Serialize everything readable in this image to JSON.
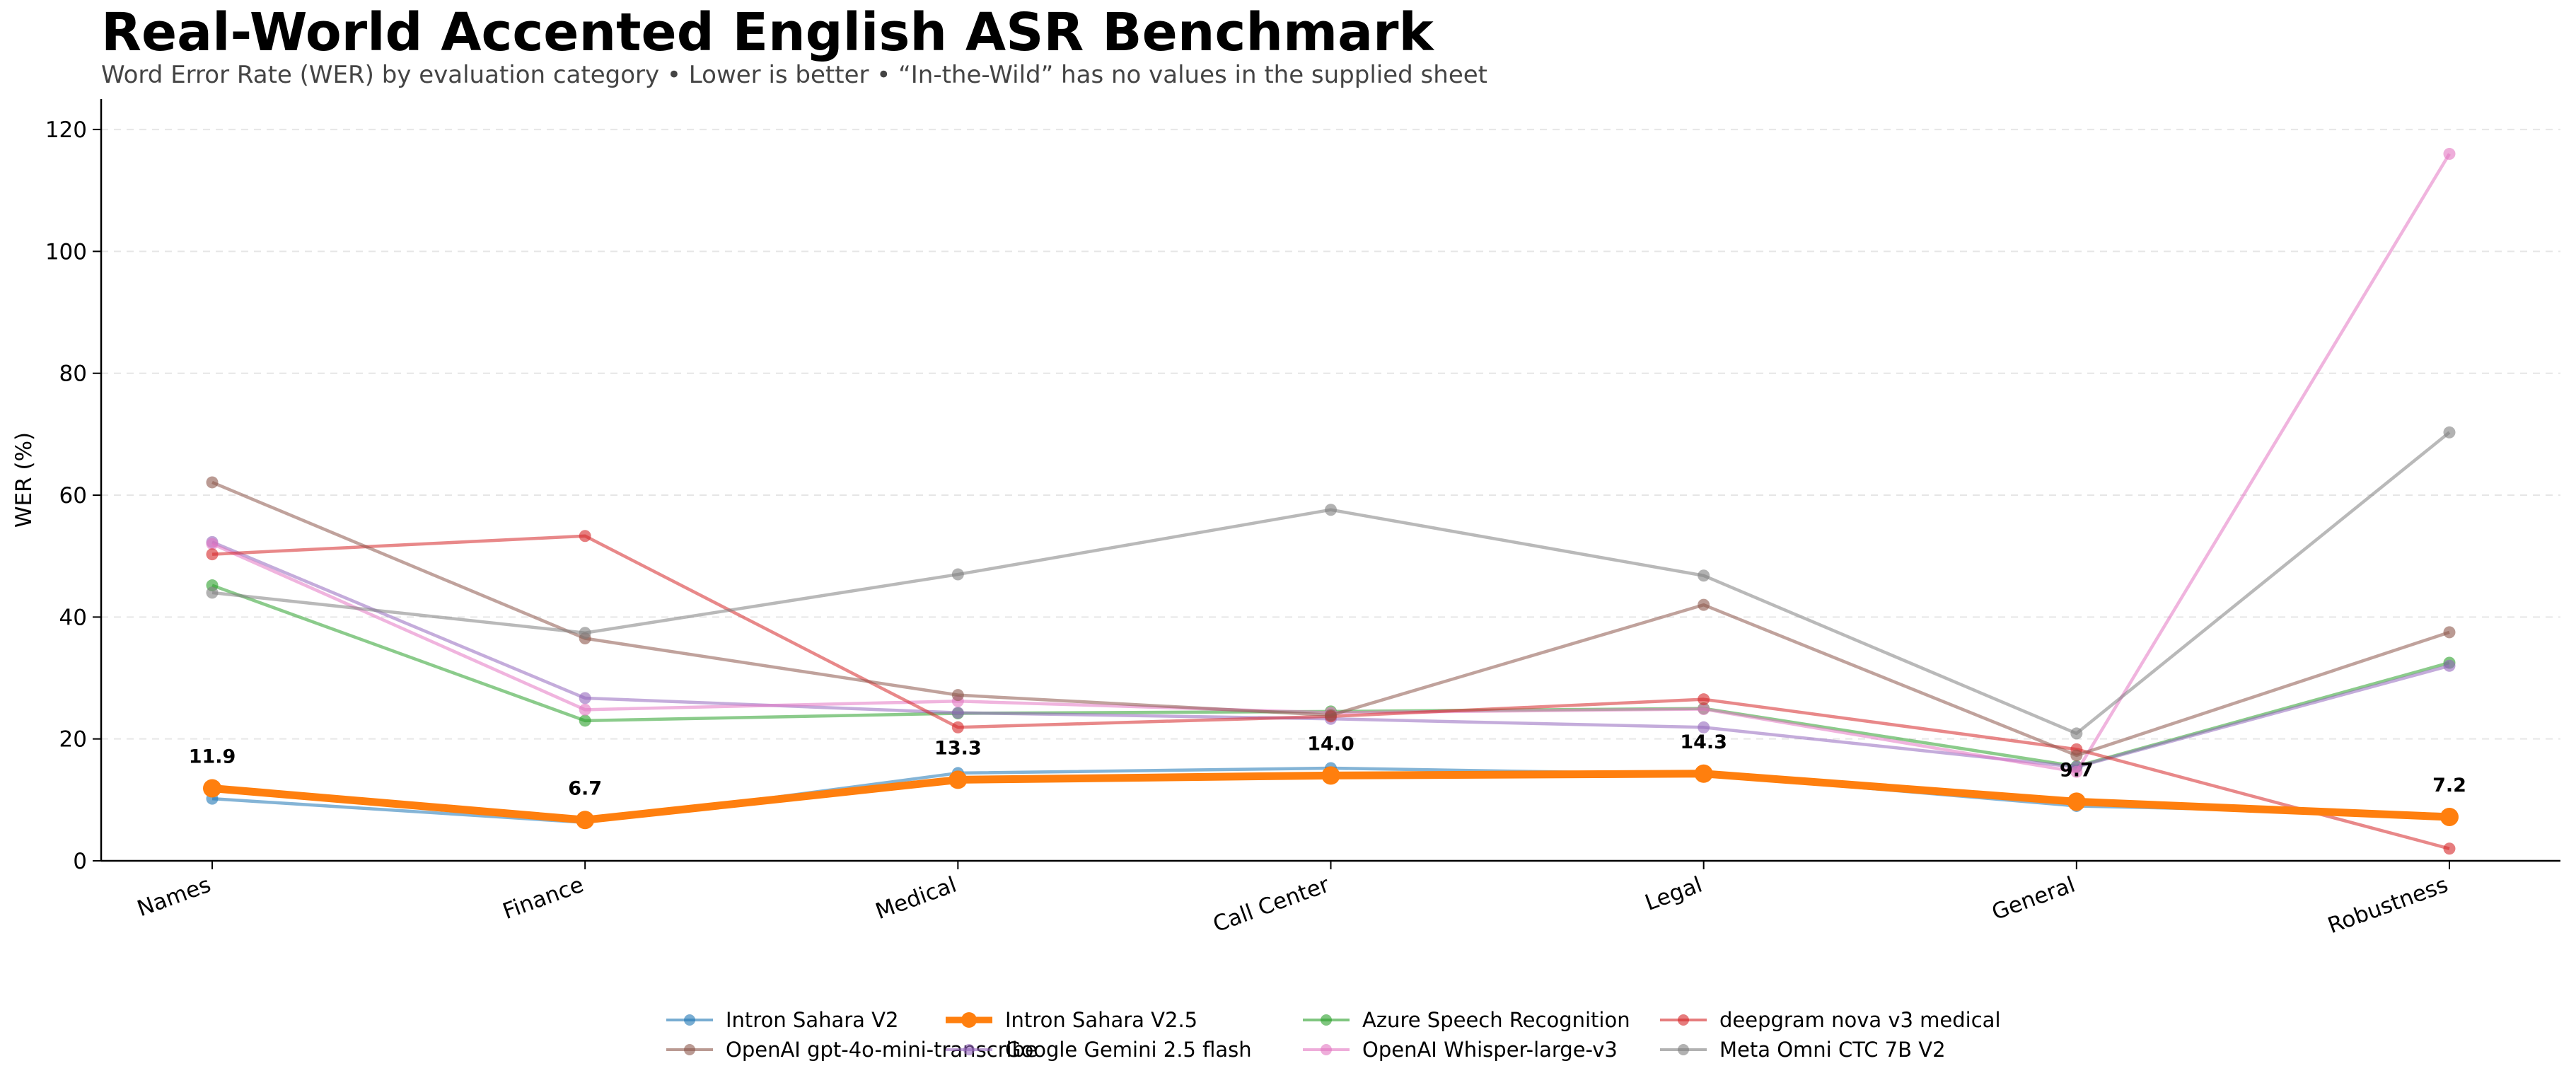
{
  "chart_data": {
    "type": "line",
    "title": "Real-World Accented English ASR Benchmark",
    "subtitle": "Word Error Rate (WER) by evaluation category • Lower is better • “In-the-Wild” has no values in the supplied sheet",
    "xlabel": "",
    "ylabel": "WER (%)",
    "ylim": [
      0,
      125
    ],
    "yticks": [
      0,
      20,
      40,
      60,
      80,
      100,
      120
    ],
    "grid": "horizontal-dashed",
    "legend_position": "bottom-center",
    "categories": [
      "Names",
      "Finance",
      "Medical",
      "Call Center",
      "Legal",
      "General",
      "Robustness"
    ],
    "series": [
      {
        "name": "Intron Sahara V2",
        "color": "#1f77b4",
        "values": [
          10.2,
          6.3,
          14.4,
          15.2,
          14.2,
          9.0,
          7.6
        ]
      },
      {
        "name": "Azure Speech Recognition",
        "color": "#2ca02c",
        "values": [
          45.2,
          23.0,
          24.2,
          24.5,
          25.0,
          15.5,
          32.5
        ]
      },
      {
        "name": "Google Gemini 2.5 flash",
        "color": "#9467bd",
        "values": [
          52.3,
          26.7,
          24.3,
          23.3,
          21.9,
          15.4,
          32.0
        ]
      },
      {
        "name": "OpenAI Whisper-large-v3",
        "color": "#e377c2",
        "values": [
          52.0,
          24.8,
          26.2,
          24.3,
          24.9,
          14.6,
          116.0
        ]
      },
      {
        "name": "deepgram nova v3 medical",
        "color": "#d62728",
        "values": [
          50.3,
          53.3,
          21.9,
          23.7,
          26.5,
          18.3,
          2.0
        ]
      },
      {
        "name": "OpenAI gpt-4o-mini-transcribe",
        "color": "#8c564b",
        "values": [
          62.1,
          36.5,
          27.2,
          23.9,
          42.0,
          17.3,
          37.5
        ]
      },
      {
        "name": "Meta Omni CTC 7B V2",
        "color": "#7f7f7f",
        "values": [
          44.0,
          37.4,
          47.0,
          57.6,
          46.8,
          20.9,
          70.3
        ]
      },
      {
        "name": "Intron Sahara V2.5",
        "color": "#ff7f0e",
        "highlight": true,
        "values": [
          11.9,
          6.7,
          13.3,
          14.0,
          14.3,
          9.7,
          7.2
        ]
      }
    ],
    "data_labels": [
      "11.9",
      "6.7",
      "13.3",
      "14.0",
      "14.3",
      "9.7",
      "7.2"
    ]
  },
  "legend": [
    {
      "name": "Intron Sahara V2",
      "color": "#1f77b4"
    },
    {
      "name": "Azure Speech Recognition",
      "color": "#2ca02c"
    },
    {
      "name": "Google Gemini 2.5 flash",
      "color": "#9467bd"
    },
    {
      "name": "OpenAI Whisper-large-v3",
      "color": "#e377c2"
    },
    {
      "name": "Intron Sahara V2.5",
      "color": "#ff7f0e",
      "highlight": true
    },
    {
      "name": "deepgram nova v3 medical",
      "color": "#d62728"
    },
    {
      "name": "OpenAI gpt-4o-mini-transcribe",
      "color": "#8c564b"
    },
    {
      "name": "Meta Omni CTC 7B V2",
      "color": "#7f7f7f"
    }
  ]
}
